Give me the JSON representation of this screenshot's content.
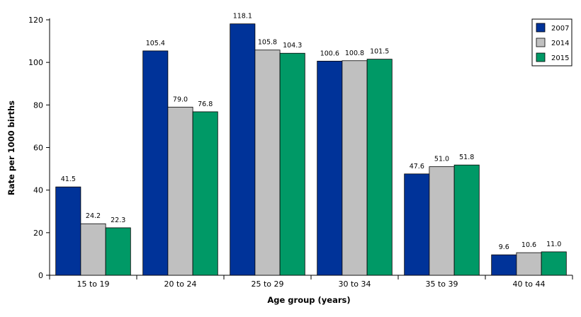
{
  "chart_data": {
    "type": "bar",
    "categories": [
      "15 to 19",
      "20 to 24",
      "25 to 29",
      "30 to 34",
      "35 to 39",
      "40 to 44"
    ],
    "series": [
      {
        "name": "2007",
        "color": "#003399",
        "values": [
          41.5,
          105.4,
          118.1,
          100.6,
          47.6,
          9.6
        ],
        "labels": [
          "41.5",
          "105.4",
          "118.1",
          "100.6",
          "47.6",
          "9.6"
        ]
      },
      {
        "name": "2014",
        "color": "#c0c0c0",
        "values": [
          24.2,
          79.0,
          105.8,
          100.8,
          51.0,
          10.6
        ],
        "labels": [
          "24.2",
          "79.0",
          "105.8",
          "100.8",
          "51.0",
          "10.6"
        ]
      },
      {
        "name": "2015",
        "color": "#009966",
        "values": [
          22.3,
          76.8,
          104.3,
          101.5,
          51.8,
          11.0
        ],
        "labels": [
          "22.3",
          "76.8",
          "104.3",
          "101.5",
          "51.8",
          "11.0"
        ]
      }
    ],
    "title": "",
    "xlabel": "Age group (years)",
    "ylabel": "Rate per 1000 births",
    "ylim": [
      0,
      120
    ],
    "yticks": [
      0,
      20,
      40,
      60,
      80,
      100,
      120
    ],
    "grid": false,
    "legend": "top-right"
  }
}
